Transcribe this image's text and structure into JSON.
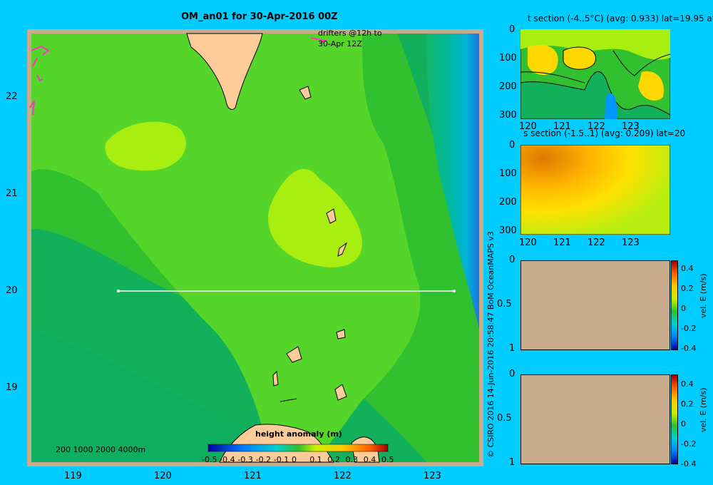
{
  "main_map": {
    "title": "OM_an01 for 30-Apr-2016 00Z",
    "lon_ticks": [
      "119",
      "120",
      "121",
      "122",
      "123"
    ],
    "lat_ticks": [
      "22",
      "21",
      "20",
      "19"
    ],
    "drifter_note_line1": "drifters @12h to",
    "drifter_note_line2": "30-Apr 12Z",
    "depth_legend": "200  1000  2000  4000m",
    "colorbar_title": "height anomaly (m)",
    "colorbar_ticks": [
      "-0.5",
      "-0.4",
      "-0.3",
      "-0.2",
      "-0.1",
      "0",
      "0.1",
      "0.2",
      "0.3",
      "0.4",
      "0.5"
    ]
  },
  "credit": "© CSIRO 2016   14-Jun-2016 20:58:47 BoM OceanMAPS v3",
  "t_section": {
    "title": "t section (-4..5°C) (avg: 0.933) lat=19.95 at",
    "y_ticks": [
      "0",
      "100",
      "200",
      "300"
    ],
    "x_ticks": [
      "120",
      "121",
      "122",
      "123"
    ]
  },
  "s_section": {
    "title": "s section (-1.5..1) (avg: 0.209) lat=20",
    "y_ticks": [
      "0",
      "100",
      "200",
      "300"
    ],
    "x_ticks": [
      "120",
      "121",
      "122",
      "123"
    ]
  },
  "vel_panel_1": {
    "y_ticks": [
      "0",
      "0.5",
      "1"
    ],
    "colorbar_ticks": [
      "0.4",
      "0.2",
      "0",
      "-0.2",
      "-0.4"
    ],
    "colorbar_label": "vel. E (m/s)"
  },
  "vel_panel_2": {
    "y_ticks": [
      "0",
      "0.5",
      "1"
    ],
    "colorbar_ticks": [
      "0.4",
      "0.2",
      "0",
      "-0.2",
      "-0.4"
    ],
    "colorbar_label": "vel. E (m/s)"
  },
  "colors": {
    "background": "#00ccff",
    "land": "#ffcc99",
    "shelf": "#c8aa8c",
    "section_line": "#ffffff",
    "drifter": "#ff33cc"
  }
}
